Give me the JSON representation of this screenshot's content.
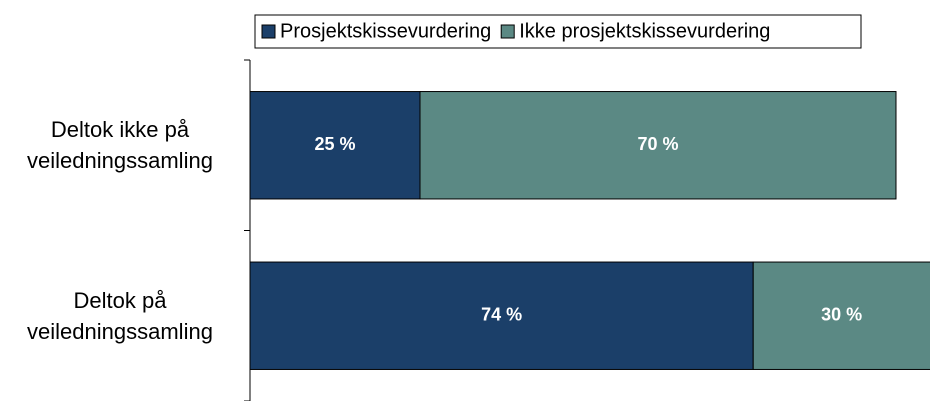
{
  "chart_data": {
    "type": "stacked_barh",
    "categories": [
      "Deltok ikke på veiledningssamling",
      "Deltok på veiledningssamling"
    ],
    "series": [
      {
        "name": "Prosjektskissevurdering",
        "color": "#1b3f69",
        "values": [
          25,
          74
        ],
        "value_labels": [
          "25 %",
          "74 %"
        ]
      },
      {
        "name": "Ikke prosjektskissevurdering",
        "color": "#5b8984",
        "values": [
          70,
          30
        ],
        "value_labels": [
          "70 %",
          "30 %"
        ]
      }
    ],
    "xlim": [
      0,
      100
    ],
    "legend": "top"
  }
}
